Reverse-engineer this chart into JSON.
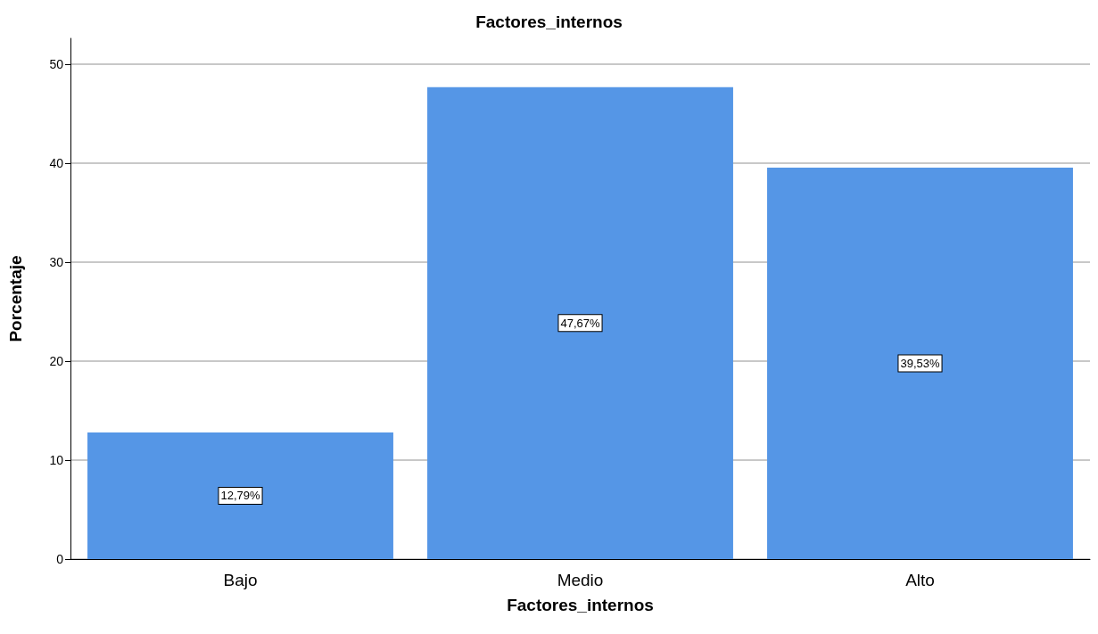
{
  "chart_data": {
    "type": "bar",
    "title": "Factores_internos",
    "xlabel": "Factores_internos",
    "ylabel": "Porcentaje",
    "categories": [
      "Bajo",
      "Medio",
      "Alto"
    ],
    "values": [
      12.79,
      47.67,
      39.53
    ],
    "value_labels": [
      "12,79%",
      "47,67%",
      "39,53%"
    ],
    "color": "#5596e6",
    "ylim": [
      0,
      52.6
    ],
    "yticks": [
      0,
      10,
      20,
      30,
      40,
      50
    ],
    "grid": "y"
  }
}
